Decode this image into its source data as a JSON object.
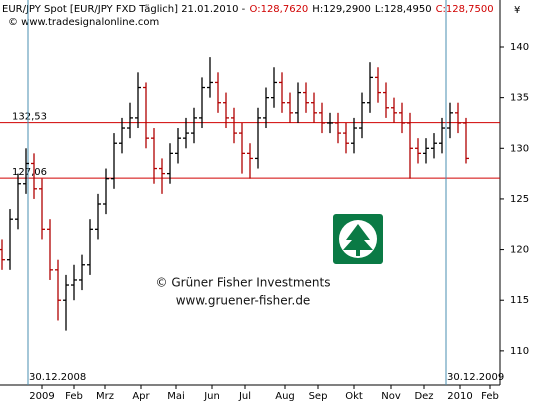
{
  "chart_data": {
    "type": "ohlc",
    "title": "EUR/JPY Spot [EUR/JPY FXD Täglich] 21.01.2010 -",
    "quote": [
      "O:128,7620",
      "H:129,2900",
      "L:128,4950",
      "C:128,7500"
    ],
    "quote_colors": [
      "#d00000",
      "#000000",
      "#000000",
      "#d00000"
    ],
    "source": "© www.tradesignalonline.com",
    "currency_symbol": "¥",
    "watermark": {
      "name": "© Grüner Fisher Investments",
      "url": "www.gruener-fisher.de"
    },
    "up_color": "#000000",
    "down_color": "#b00000",
    "open": [
      120,
      119,
      123,
      126.5,
      128.5,
      126,
      122,
      118,
      115,
      116.5,
      117,
      118.5,
      122,
      124.5,
      127,
      130.5,
      132,
      133,
      136,
      131,
      128,
      127.5,
      129.5,
      131,
      131.5,
      133,
      136,
      136.5,
      134.5,
      133,
      131.5,
      129.5,
      129,
      133,
      135,
      136.5,
      134.5,
      133.5,
      135.5,
      134.5,
      133.5,
      132.5,
      132.5,
      131.5,
      130.5,
      132,
      134.5,
      137,
      135.5,
      134,
      133.5,
      132.5,
      130,
      129.5,
      130,
      130.5,
      132,
      133.5,
      132.5
    ],
    "high": [
      121,
      124,
      127.5,
      130,
      129.5,
      127,
      123,
      119,
      117.5,
      118.5,
      119.5,
      123,
      125.5,
      128,
      131.5,
      133,
      134.5,
      137.5,
      136.5,
      132,
      129,
      130.5,
      132,
      133,
      134,
      137,
      139,
      137.5,
      135.5,
      134,
      132.5,
      130.5,
      134,
      136,
      138,
      137.5,
      135.5,
      136.5,
      136.5,
      135.5,
      134.5,
      133.5,
      133.5,
      132.5,
      133,
      135.5,
      138.5,
      138,
      136.5,
      135,
      134.5,
      133.5,
      131,
      131,
      131.5,
      133,
      134.5,
      134.5,
      133
    ],
    "low": [
      118,
      118,
      122,
      125.5,
      125,
      121,
      117,
      113,
      112,
      115,
      116,
      117.5,
      121,
      123.5,
      126,
      129.5,
      131,
      132,
      130,
      126.5,
      125.5,
      126.5,
      128.5,
      130,
      130.5,
      132,
      135,
      133.5,
      132,
      130.5,
      127.5,
      127,
      128,
      132,
      134,
      133.5,
      132.5,
      132.5,
      133.5,
      132.5,
      131.5,
      131.5,
      130.5,
      129.5,
      129.5,
      131,
      133.5,
      134.5,
      133,
      132.5,
      131.5,
      127,
      128.5,
      128.5,
      129,
      129.5,
      131,
      131.5,
      128.5
    ],
    "close": [
      119,
      123,
      126.5,
      128.5,
      126,
      122,
      118,
      115,
      116.5,
      117,
      118.5,
      122,
      124.5,
      127,
      130.5,
      132,
      133,
      136,
      131,
      128,
      127.5,
      129.5,
      131,
      131.5,
      133,
      136,
      136.5,
      134.5,
      133,
      131.5,
      129.5,
      129,
      133,
      135,
      136.5,
      134.5,
      133.5,
      135.5,
      134.5,
      133.5,
      132.5,
      132.5,
      131.5,
      130.5,
      132,
      134.5,
      137,
      135.5,
      134,
      133.5,
      132.5,
      130,
      129.5,
      130,
      130.5,
      132,
      133.5,
      132.5,
      129
    ],
    "xlim": [
      -0.25,
      62.25
    ],
    "xticks": [
      {
        "value": 5,
        "label": "2009"
      },
      {
        "value": 9,
        "label": "Feb"
      },
      {
        "value": 12.875,
        "label": "Mrz"
      },
      {
        "value": 17.375,
        "label": "Apr"
      },
      {
        "value": 21.75,
        "label": "Mai"
      },
      {
        "value": 26.25,
        "label": "Jun"
      },
      {
        "value": 30.375,
        "label": "Jul"
      },
      {
        "value": 35.375,
        "label": "Aug"
      },
      {
        "value": 39.5,
        "label": "Sep"
      },
      {
        "value": 44,
        "label": "Okt"
      },
      {
        "value": 48.625,
        "label": "Nov"
      },
      {
        "value": 52.75,
        "label": "Dez"
      },
      {
        "value": 57.25,
        "label": "2010"
      },
      {
        "value": 61,
        "label": "Feb"
      }
    ],
    "ylim": [
      106.63,
      144.64
    ],
    "yticks": [
      110,
      115,
      120,
      125,
      130,
      135,
      140
    ],
    "hlines": [
      {
        "value": 132.53,
        "label": "132,53"
      },
      {
        "value": 127.06,
        "label": "127,06"
      }
    ],
    "vlines": [
      {
        "value": 3.25,
        "label": "30.12.2008"
      },
      {
        "value": 55.5,
        "label": "30.12.2009"
      }
    ]
  }
}
